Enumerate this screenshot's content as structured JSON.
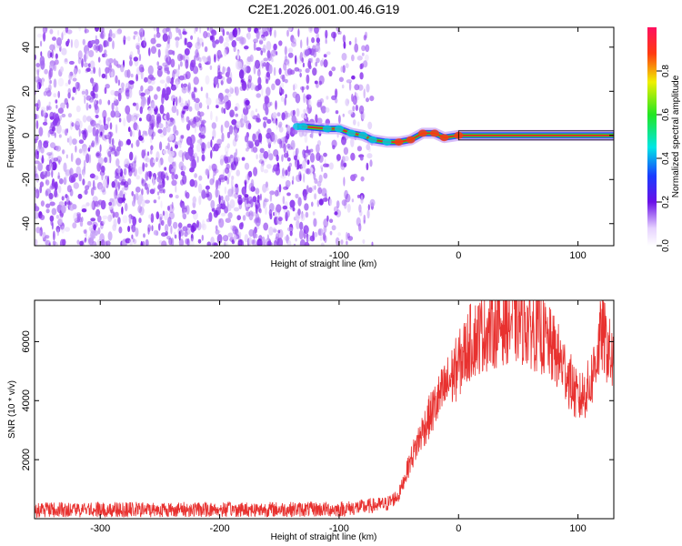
{
  "figure_title": "C2E1.2026.001.00.46.G19",
  "colors": {
    "snr_line": "#e8312f",
    "ridge_core": "#e8222a",
    "noise_dot": "#7a1de8",
    "frame": "#000000"
  },
  "chart_data": [
    {
      "type": "heatmap",
      "name": "spectrogram",
      "title": "C2E1.2026.001.00.46.G19",
      "xlabel": "Height of straight line (km)",
      "ylabel": "Frequency (Hz)",
      "xlim": [
        -355,
        130
      ],
      "ylim": [
        -50,
        49
      ],
      "xticks": [
        -300,
        -200,
        -100,
        0,
        100
      ],
      "xtick_labels": [
        "-300",
        "-200",
        "-100",
        "0",
        "100"
      ],
      "yticks": [
        -40,
        -20,
        0,
        20,
        40
      ],
      "ytick_labels": [
        "-40",
        "-20",
        "0",
        "20",
        "40"
      ],
      "colorbar": {
        "label": "Normalized spectral amplitude",
        "range": [
          0,
          1
        ],
        "ticks": [
          0.0,
          0.2,
          0.4,
          0.6,
          0.8
        ],
        "tick_labels": [
          "0.0",
          "0.2",
          "0.4",
          "0.6",
          "0.8"
        ]
      },
      "noise_region_km": [
        -355,
        -72
      ],
      "ridge": [
        {
          "x": -135,
          "y": 4,
          "amp": 0.3
        },
        {
          "x": -130,
          "y": 4,
          "amp": 0.32
        },
        {
          "x": -110,
          "y": 3,
          "amp": 0.35
        },
        {
          "x": -100,
          "y": 3,
          "amp": 0.4
        },
        {
          "x": -90,
          "y": 1,
          "amp": 0.45
        },
        {
          "x": -80,
          "y": 0,
          "amp": 0.5
        },
        {
          "x": -72,
          "y": -2,
          "amp": 0.55
        },
        {
          "x": -60,
          "y": -3,
          "amp": 0.6
        },
        {
          "x": -50,
          "y": -3,
          "amp": 0.65
        },
        {
          "x": -40,
          "y": -2,
          "amp": 0.7
        },
        {
          "x": -30,
          "y": 1,
          "amp": 0.75
        },
        {
          "x": -20,
          "y": 1,
          "amp": 0.8
        },
        {
          "x": -12,
          "y": -1,
          "amp": 0.85
        },
        {
          "x": 0,
          "y": 0,
          "amp": 0.95
        },
        {
          "x": 130,
          "y": 0,
          "amp": 1.0
        }
      ]
    },
    {
      "type": "line",
      "name": "snr",
      "xlabel": "Height of straight line (km)",
      "ylabel": "SNR (10 * v/v)",
      "xlim": [
        -355,
        130
      ],
      "ylim": [
        0,
        7400
      ],
      "xticks": [
        -300,
        -200,
        -100,
        0,
        100
      ],
      "xtick_labels": [
        "-300",
        "-200",
        "-100",
        "0",
        "100"
      ],
      "yticks": [
        2000,
        4000,
        6000
      ],
      "ytick_labels": [
        "2000",
        "4000",
        "6000"
      ],
      "envelope": {
        "x": [
          -355,
          -100,
          -80,
          -60,
          -50,
          -40,
          -30,
          -20,
          -10,
          0,
          5,
          10,
          20,
          30,
          40,
          50,
          60,
          70,
          80,
          90,
          100,
          110,
          120,
          130
        ],
        "y": [
          300,
          320,
          400,
          500,
          800,
          2000,
          3000,
          3800,
          4500,
          5200,
          5600,
          6000,
          6300,
          6500,
          6700,
          6700,
          6500,
          6200,
          5700,
          5000,
          4000,
          4500,
          6300,
          5200
        ]
      }
    }
  ]
}
